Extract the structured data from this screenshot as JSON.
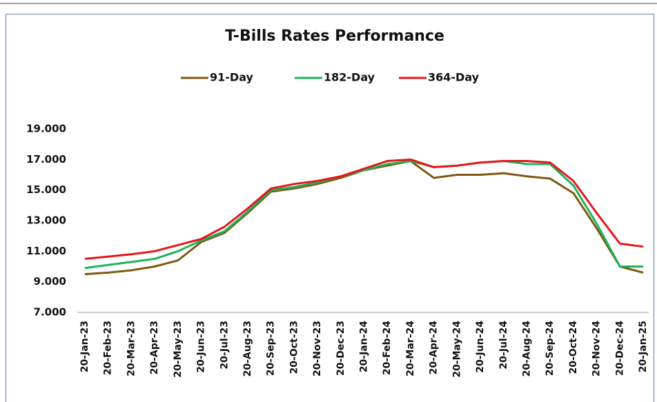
{
  "chart_data": {
    "type": "line",
    "title": "T-Bills Rates Performance",
    "categories": [
      "20-Jan-23",
      "20-Feb-23",
      "20-Mar-23",
      "20-Apr-23",
      "20-May-23",
      "20-Jun-23",
      "20-Jul-23",
      "20-Aug-23",
      "20-Sep-23",
      "20-Oct-23",
      "20-Nov-23",
      "20-Dec-23",
      "20-Jan-24",
      "20-Feb-24",
      "20-Mar-24",
      "20-Apr-24",
      "20-May-24",
      "20-Jun-24",
      "20-Jul-24",
      "20-Aug-24",
      "20-Sep-24",
      "20-Oct-24",
      "20-Nov-24",
      "20-Dec-24",
      "20-Jan-25"
    ],
    "series": [
      {
        "name": "91-Day",
        "color": "#7a5a10",
        "values": [
          9.5,
          9.6,
          9.75,
          10.0,
          10.4,
          11.6,
          12.2,
          13.5,
          14.9,
          15.1,
          15.4,
          15.8,
          16.3,
          16.6,
          16.9,
          15.8,
          16.0,
          16.0,
          16.1,
          15.9,
          15.75,
          14.8,
          12.5,
          10.0,
          9.6
        ]
      },
      {
        "name": "182-Day",
        "color": "#1db35a",
        "values": [
          9.9,
          10.1,
          10.3,
          10.5,
          11.0,
          11.7,
          12.3,
          13.6,
          15.0,
          15.2,
          15.5,
          15.9,
          16.3,
          16.7,
          16.9,
          16.5,
          16.6,
          16.8,
          16.9,
          16.7,
          16.7,
          15.3,
          12.8,
          10.0,
          10.0
        ]
      },
      {
        "name": "364-Day",
        "color": "#e8141c",
        "values": [
          10.5,
          10.65,
          10.8,
          11.0,
          11.4,
          11.8,
          12.6,
          13.8,
          15.1,
          15.4,
          15.6,
          15.9,
          16.4,
          16.9,
          17.0,
          16.5,
          16.6,
          16.8,
          16.9,
          16.9,
          16.8,
          15.6,
          13.5,
          11.5,
          11.3
        ]
      }
    ],
    "ylim": [
      7,
      19
    ],
    "yticks": [
      {
        "value": 7,
        "label": "7.000"
      },
      {
        "value": 9,
        "label": "9.000"
      },
      {
        "value": 11,
        "label": "11.000"
      },
      {
        "value": 13,
        "label": "13.000"
      },
      {
        "value": 15,
        "label": "15.000"
      },
      {
        "value": 17,
        "label": "17.000"
      },
      {
        "value": 19,
        "label": "19.000"
      }
    ],
    "grid": false
  }
}
